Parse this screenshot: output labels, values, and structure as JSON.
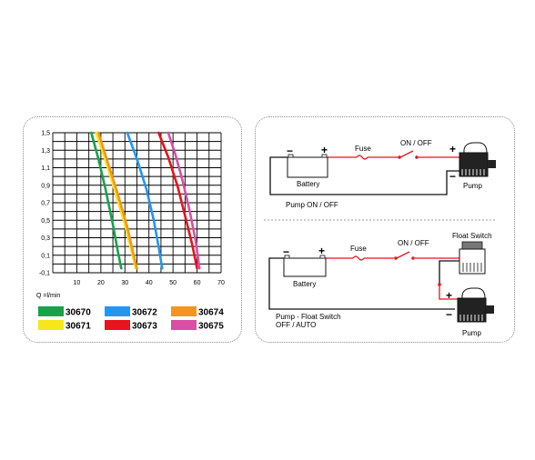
{
  "chart_data": {
    "type": "line",
    "title": "",
    "xlabel": "Q =l/min",
    "ylabel": "",
    "xlim": [
      0,
      70
    ],
    "ylim": [
      -0.1,
      1.5
    ],
    "x_ticks": [
      "10",
      "20",
      "30",
      "40",
      "50",
      "60",
      "70"
    ],
    "y_ticks": [
      "1,5",
      "1,3",
      "1,1",
      "0,9",
      "0,7",
      "0,5",
      "0,3",
      "0,1",
      "-0,1"
    ],
    "grid": true,
    "legend_position": "bottom",
    "series": [
      {
        "name": "30670",
        "color": "#16a34a",
        "x": [
          16,
          19,
          22,
          25,
          27,
          28.5
        ],
        "y": [
          1.5,
          1.2,
          0.85,
          0.45,
          0.15,
          -0.05
        ]
      },
      {
        "name": "30671",
        "color": "#f5e71a",
        "x": [
          18,
          22,
          26,
          30,
          33,
          34.5
        ],
        "y": [
          1.5,
          1.18,
          0.82,
          0.45,
          0.12,
          -0.05
        ]
      },
      {
        "name": "30672",
        "color": "#2196f3",
        "x": [
          31,
          35,
          39,
          42,
          44,
          45.5
        ],
        "y": [
          1.5,
          1.2,
          0.85,
          0.5,
          0.2,
          -0.05
        ]
      },
      {
        "name": "30673",
        "color": "#e8131c",
        "x": [
          44,
          48,
          52,
          55,
          58,
          60
        ],
        "y": [
          1.5,
          1.22,
          0.88,
          0.55,
          0.22,
          -0.05
        ]
      },
      {
        "name": "30674",
        "color": "#f7941d",
        "x": [
          19,
          23,
          27,
          31,
          33.5,
          35
        ],
        "y": [
          1.5,
          1.15,
          0.8,
          0.42,
          0.12,
          -0.05
        ]
      },
      {
        "name": "30675",
        "color": "#d94fa5",
        "x": [
          48,
          51,
          54,
          57,
          59.5,
          61
        ],
        "y": [
          1.5,
          1.25,
          0.95,
          0.6,
          0.25,
          -0.05
        ]
      }
    ]
  },
  "legend": [
    {
      "code": "30670",
      "color": "#16a34a"
    },
    {
      "code": "30672",
      "color": "#2196f3"
    },
    {
      "code": "30674",
      "color": "#f7941d"
    },
    {
      "code": "30671",
      "color": "#f5e71a"
    },
    {
      "code": "30673",
      "color": "#e8131c"
    },
    {
      "code": "30675",
      "color": "#d94fa5"
    }
  ],
  "diagram_top": {
    "battery": "Battery",
    "fuse": "Fuse",
    "switch": "ON / OFF",
    "pump": "Pump",
    "caption": "Pump ON / OFF",
    "minus": "−",
    "plus": "+"
  },
  "diagram_bottom": {
    "battery": "Battery",
    "fuse": "Fuse",
    "switch": "ON / OFF",
    "float_switch": "Float Switch",
    "pump": "Pump",
    "caption_line1": "Pump - Float Switch",
    "caption_line2": "OFF / AUTO",
    "minus": "−",
    "plus": "+"
  },
  "colors": {
    "wire_red": "#e8131c",
    "wire_black": "#111111",
    "panel_border": "#8a8a8a"
  }
}
